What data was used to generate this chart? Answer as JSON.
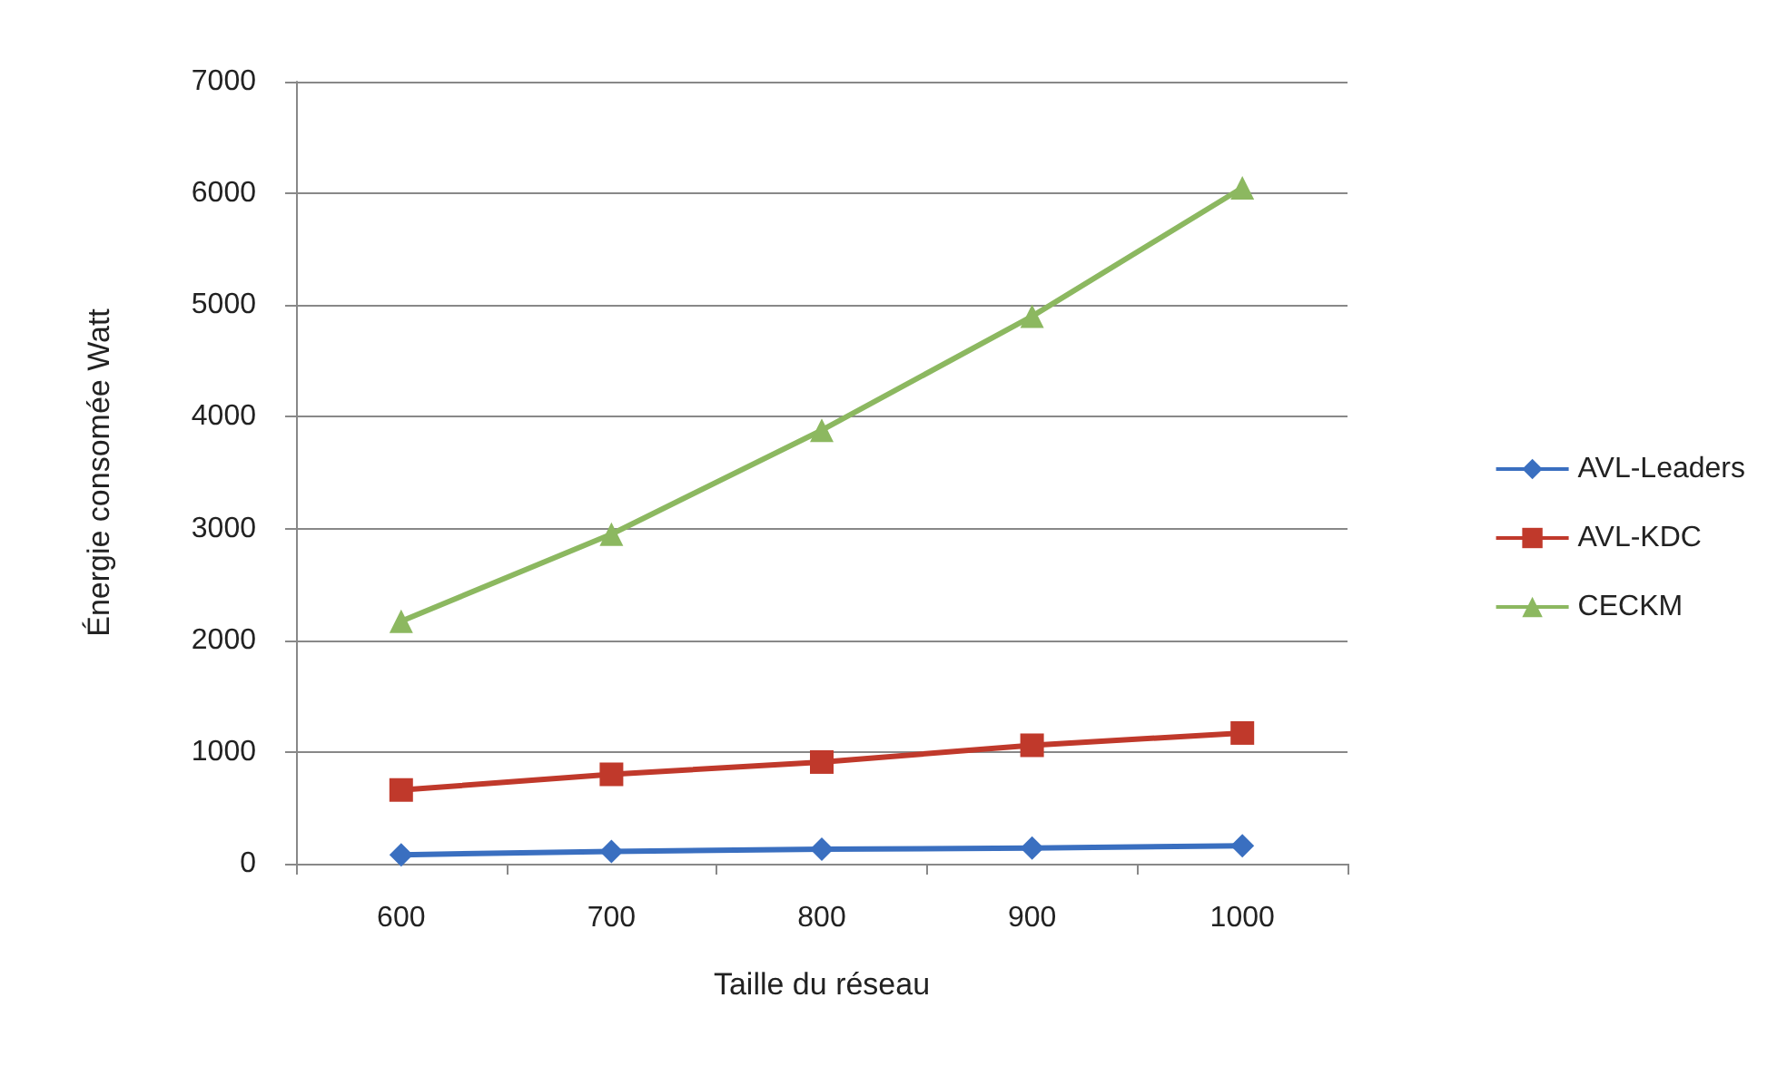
{
  "chart_data": {
    "type": "line",
    "xlabel": "Taille du réseau",
    "ylabel": "Énergie consomée Watt",
    "categories": [
      "600",
      "700",
      "800",
      "900",
      "1000"
    ],
    "series": [
      {
        "name": "AVL-Leaders",
        "color": "#3a6fc0",
        "marker": "diamond",
        "values": [
          80,
          110,
          130,
          140,
          160
        ]
      },
      {
        "name": "AVL-KDC",
        "color": "#c0392b",
        "marker": "square",
        "values": [
          660,
          800,
          910,
          1060,
          1170
        ]
      },
      {
        "name": "CECKM",
        "color": "#8cb860",
        "marker": "triangle",
        "values": [
          2170,
          2950,
          3880,
          4900,
          6050
        ]
      }
    ],
    "ylim": [
      0,
      7000
    ],
    "yticks": [
      0,
      1000,
      2000,
      3000,
      4000,
      5000,
      6000,
      7000
    ],
    "grid": "y",
    "legend": "right"
  }
}
